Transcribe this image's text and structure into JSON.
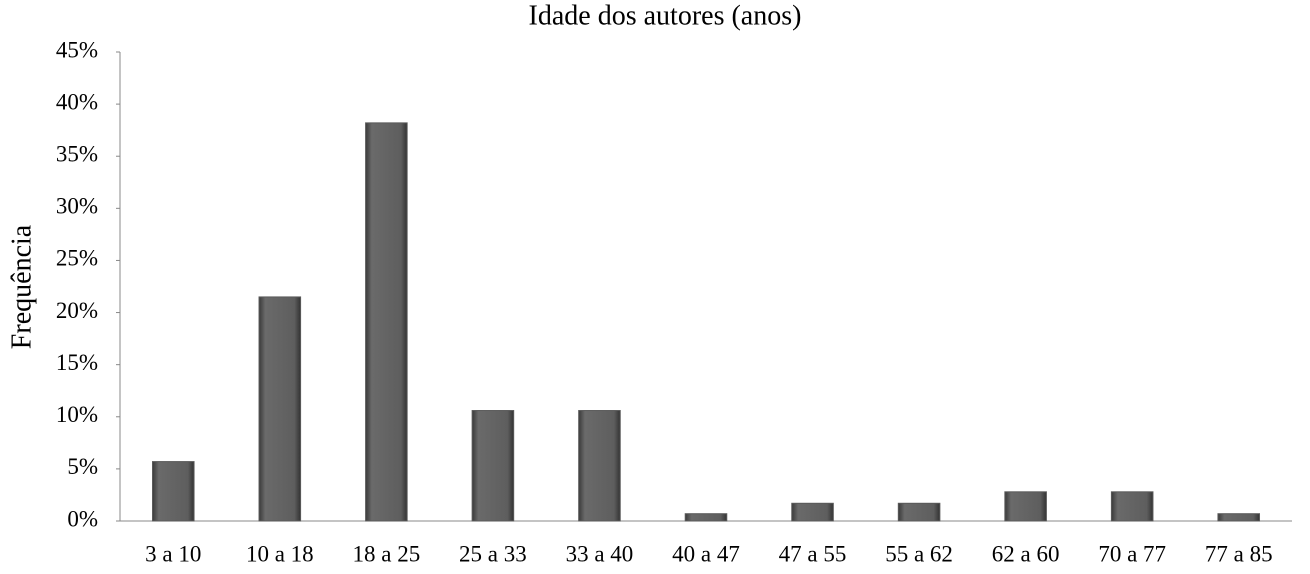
{
  "chart_data": {
    "type": "bar",
    "title": "Idade dos autores (anos)",
    "y_label": "Frequência",
    "categories": [
      "3 a 10",
      "10 a 18",
      "18 a 25",
      "25 a 33",
      "33 a 40",
      "40 a 47",
      "47 a 55",
      "55 a 62",
      "62 a 60",
      "70 a 77",
      "77 a 85"
    ],
    "values": [
      5.7,
      21.5,
      38.2,
      10.6,
      10.6,
      0.7,
      1.7,
      1.7,
      2.8,
      2.8,
      0.7
    ],
    "color": "#5a5a5a",
    "ylim": [
      0,
      45
    ],
    "yticks": [
      {
        "value": 0,
        "label": "0%"
      },
      {
        "value": 5,
        "label": "5%"
      },
      {
        "value": 10,
        "label": "10%"
      },
      {
        "value": 15,
        "label": "15%"
      },
      {
        "value": 20,
        "label": "20%"
      },
      {
        "value": 25,
        "label": "25%"
      },
      {
        "value": 30,
        "label": "30%"
      },
      {
        "value": 35,
        "label": "35%"
      },
      {
        "value": 40,
        "label": "40%"
      },
      {
        "value": 45,
        "label": "45%"
      }
    ],
    "grid": false
  }
}
